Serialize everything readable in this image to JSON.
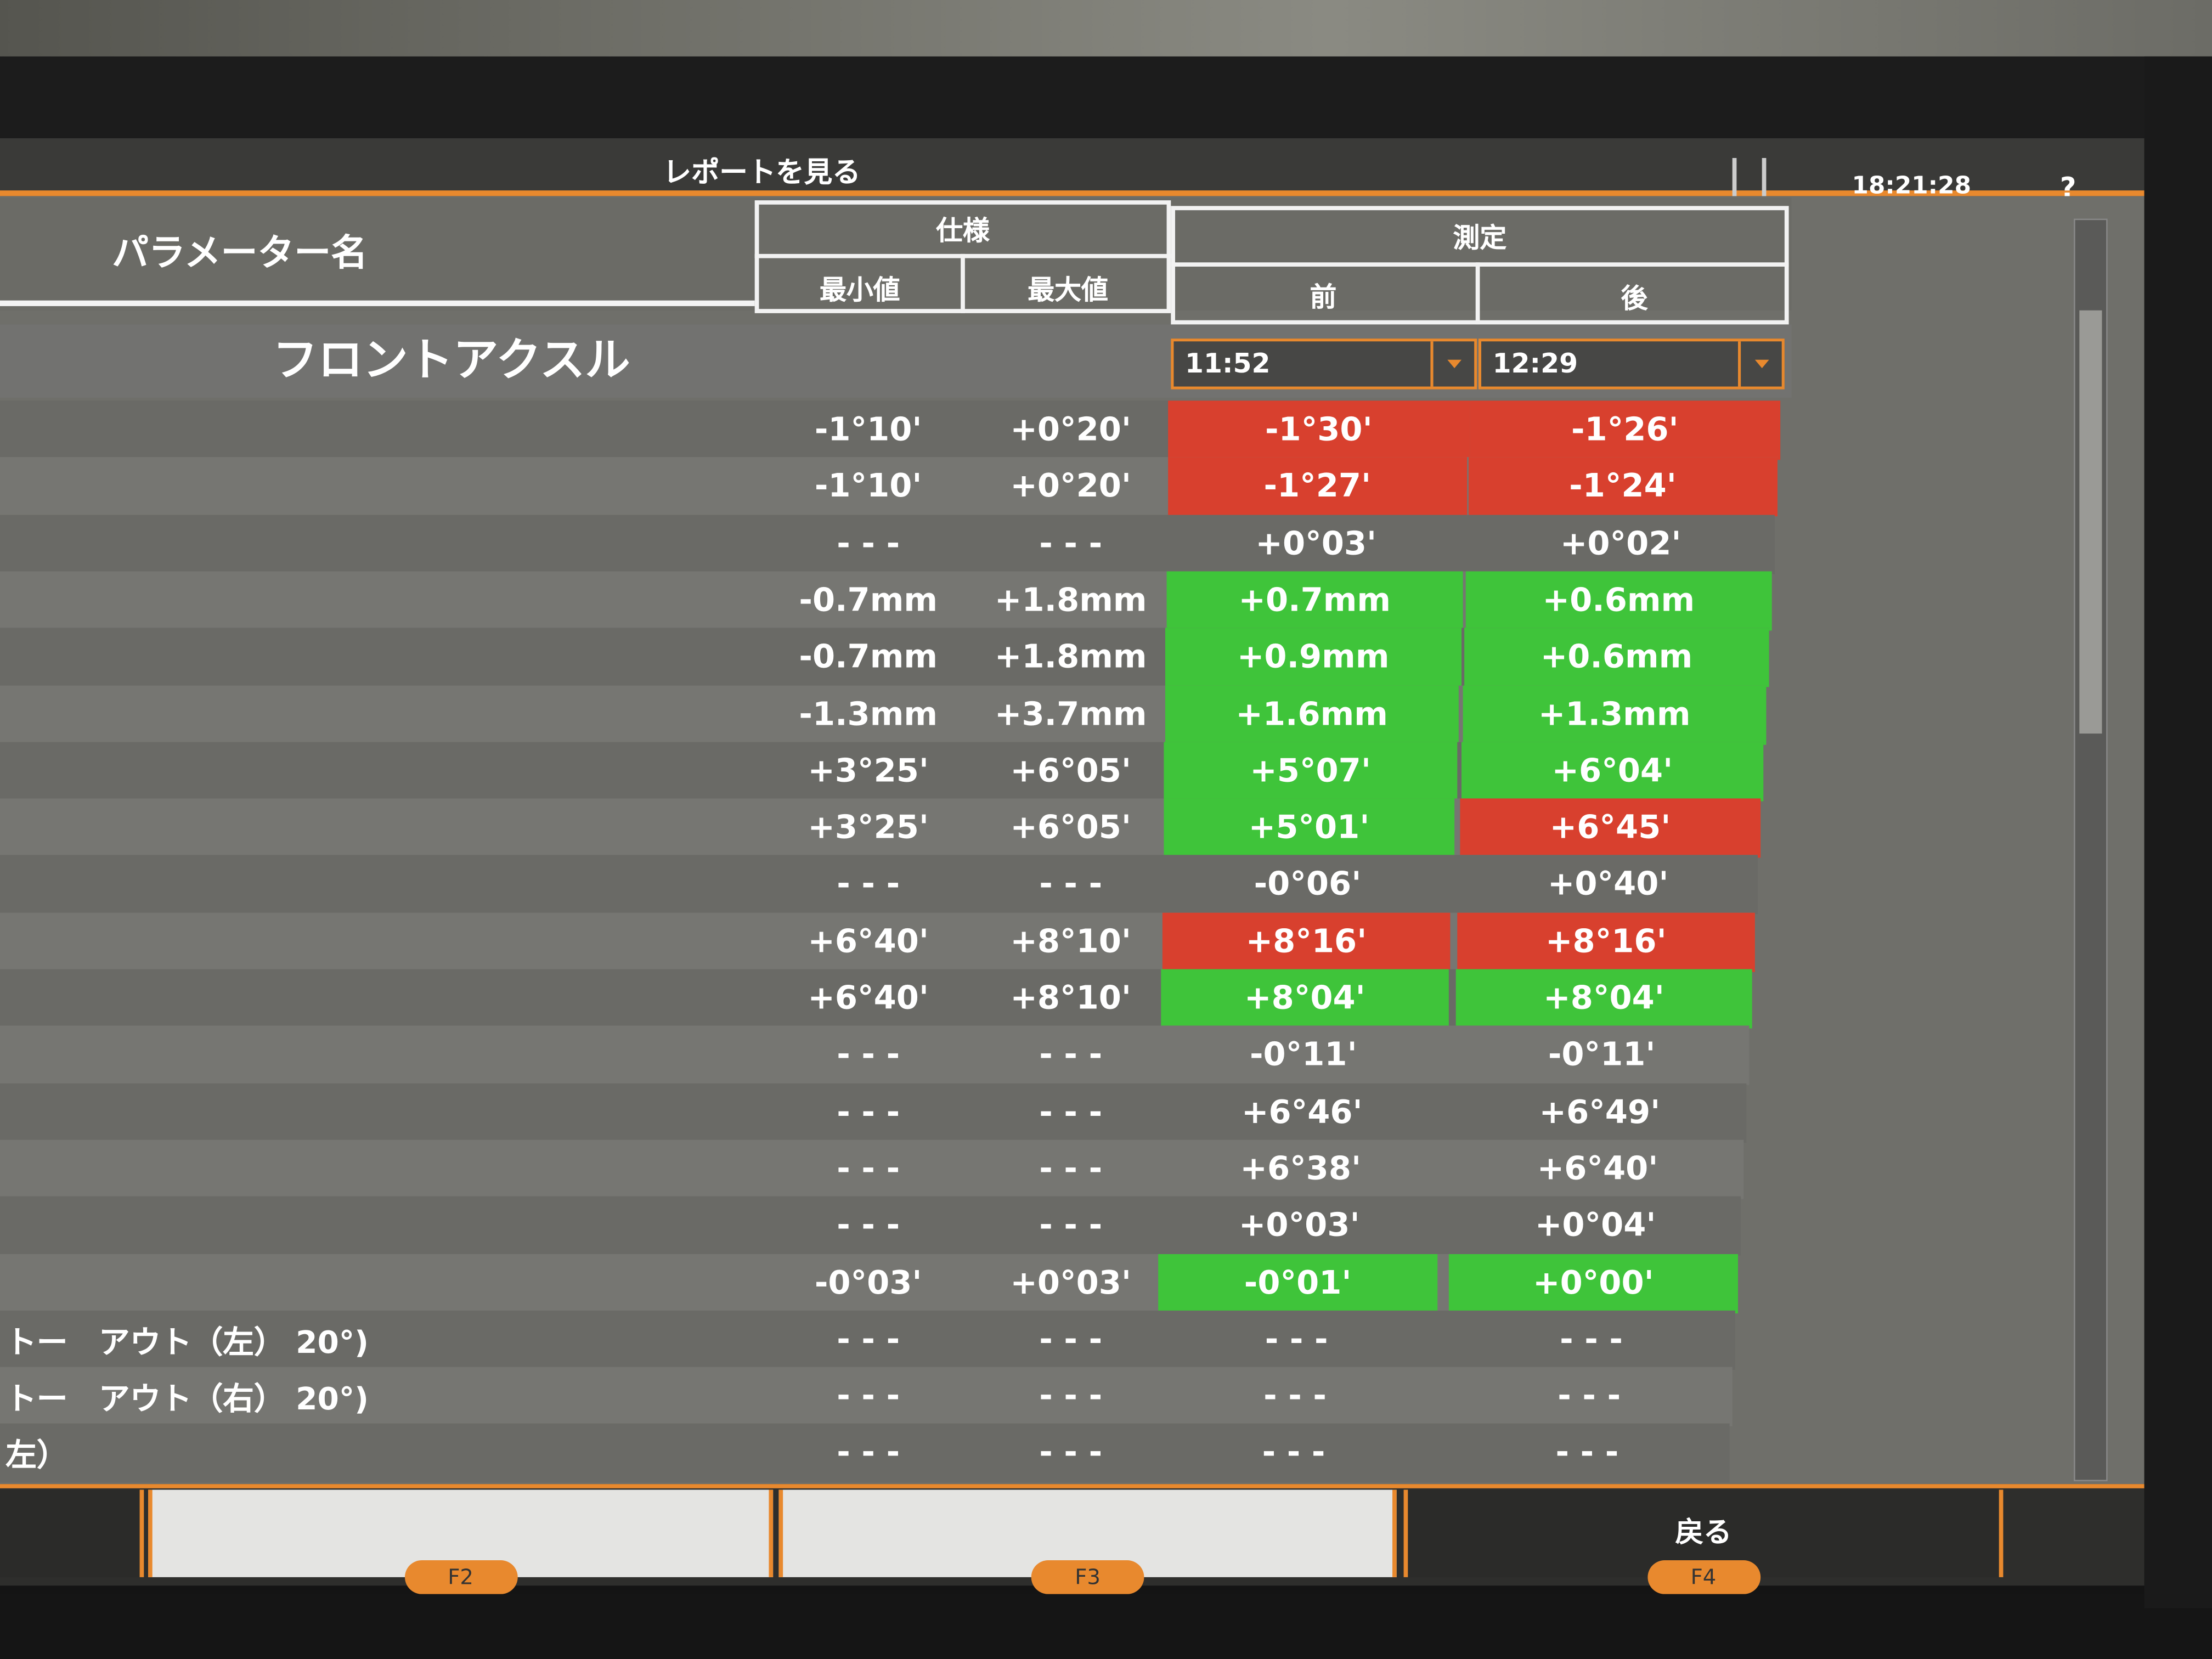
{
  "header": {
    "title": "レポートを見る",
    "time": "18:21:28",
    "help": "?"
  },
  "table": {
    "columns": {
      "name": "パラメーター名",
      "spec": "仕様",
      "min": "最小値",
      "max": "最大値",
      "measure": "測定",
      "before": "前",
      "after": "後"
    },
    "section": "フロントアクスル",
    "before_time": "11:52",
    "after_time": "12:29",
    "rows": [
      {
        "min": "-1°10'",
        "max": "+0°20'",
        "before": "-1°30'",
        "after": "-1°26'",
        "before_color": "#d8402e",
        "after_color": "#d8402e"
      },
      {
        "min": "-1°10'",
        "max": "+0°20'",
        "before": "-1°27'",
        "after": "-1°24'",
        "before_color": "#d8402e",
        "after_color": "#d8402e"
      },
      {
        "min": "- - -",
        "max": "- - -",
        "before": "+0°03'",
        "after": "+0°02'"
      },
      {
        "min": "-0.7mm",
        "max": "+1.8mm",
        "before": "+0.7mm",
        "after": "+0.6mm",
        "before_color": "#3fc43a",
        "after_color": "#3fc43a"
      },
      {
        "min": "-0.7mm",
        "max": "+1.8mm",
        "before": "+0.9mm",
        "after": "+0.6mm",
        "before_color": "#3fc43a",
        "after_color": "#3fc43a"
      },
      {
        "min": "-1.3mm",
        "max": "+3.7mm",
        "before": "+1.6mm",
        "after": "+1.3mm",
        "before_color": "#3fc43a",
        "after_color": "#3fc43a"
      },
      {
        "min": "+3°25'",
        "max": "+6°05'",
        "before": "+5°07'",
        "after": "+6°04'",
        "before_color": "#3fc43a",
        "after_color": "#3fc43a"
      },
      {
        "min": "+3°25'",
        "max": "+6°05'",
        "before": "+5°01'",
        "after": "+6°45'",
        "before_color": "#3fc43a",
        "after_color": "#d8402e"
      },
      {
        "min": "- - -",
        "max": "- - -",
        "before": "-0°06'",
        "after": "+0°40'"
      },
      {
        "min": "+6°40'",
        "max": "+8°10'",
        "before": "+8°16'",
        "after": "+8°16'",
        "before_color": "#d8402e",
        "after_color": "#d8402e"
      },
      {
        "min": "+6°40'",
        "max": "+8°10'",
        "before": "+8°04'",
        "after": "+8°04'",
        "before_color": "#3fc43a",
        "after_color": "#3fc43a"
      },
      {
        "min": "- - -",
        "max": "- - -",
        "before": "-0°11'",
        "after": "-0°11'"
      },
      {
        "min": "- - -",
        "max": "- - -",
        "before": "+6°46'",
        "after": "+6°49'"
      },
      {
        "min": "- - -",
        "max": "- - -",
        "before": "+6°38'",
        "after": "+6°40'"
      },
      {
        "min": "- - -",
        "max": "- - -",
        "before": "+0°03'",
        "after": "+0°04'"
      },
      {
        "min": "-0°03'",
        "max": "+0°03'",
        "before": "-0°01'",
        "after": "+0°00'",
        "before_color": "#3fc43a",
        "after_color": "#3fc43a"
      },
      {
        "name": "トー　アウト（左） 20°)",
        "min": "- - -",
        "max": "- - -",
        "before": "- - -",
        "after": "- - -"
      },
      {
        "name": "トー　アウト（右） 20°)",
        "min": "- - -",
        "max": "- - -",
        "before": "- - -",
        "after": "- - -"
      },
      {
        "name": "左）",
        "min": "- - -",
        "max": "- - -",
        "before": "- - -",
        "after": "- - -"
      }
    ]
  },
  "footer": {
    "buttons": [
      {
        "key": "F2"
      },
      {
        "key": "F3"
      },
      {
        "key": "F4",
        "label": "戻る"
      }
    ]
  }
}
